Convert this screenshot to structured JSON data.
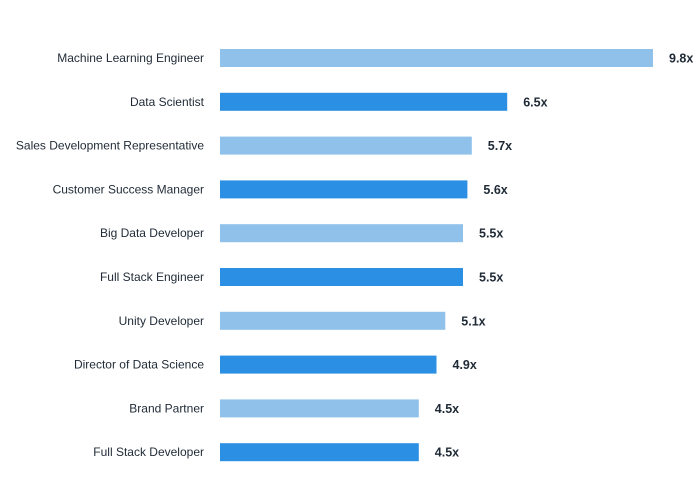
{
  "chart_data": {
    "type": "bar",
    "orientation": "horizontal",
    "title": "",
    "xlabel": "",
    "ylabel": "",
    "grid": false,
    "legend": "none",
    "xlim": [
      0,
      9.8
    ],
    "categories": [
      "Machine Learning Engineer",
      "Data Scientist",
      "Sales Development Representative",
      "Customer Success Manager",
      "Big Data Developer",
      "Full Stack Engineer",
      "Unity Developer",
      "Director of Data Science",
      "Brand Partner",
      "Full Stack Developer"
    ],
    "values": [
      9.8,
      6.5,
      5.7,
      5.6,
      5.5,
      5.5,
      5.1,
      4.9,
      4.5,
      4.5
    ],
    "value_labels": [
      "9.8x",
      "6.5x",
      "5.7x",
      "5.6x",
      "5.5x",
      "5.5x",
      "5.1x",
      "4.9x",
      "4.5x",
      "4.5x"
    ],
    "colors": {
      "light": "#8fc1ea",
      "dark": "#2b8fe3",
      "text": "#1f2a36"
    }
  }
}
